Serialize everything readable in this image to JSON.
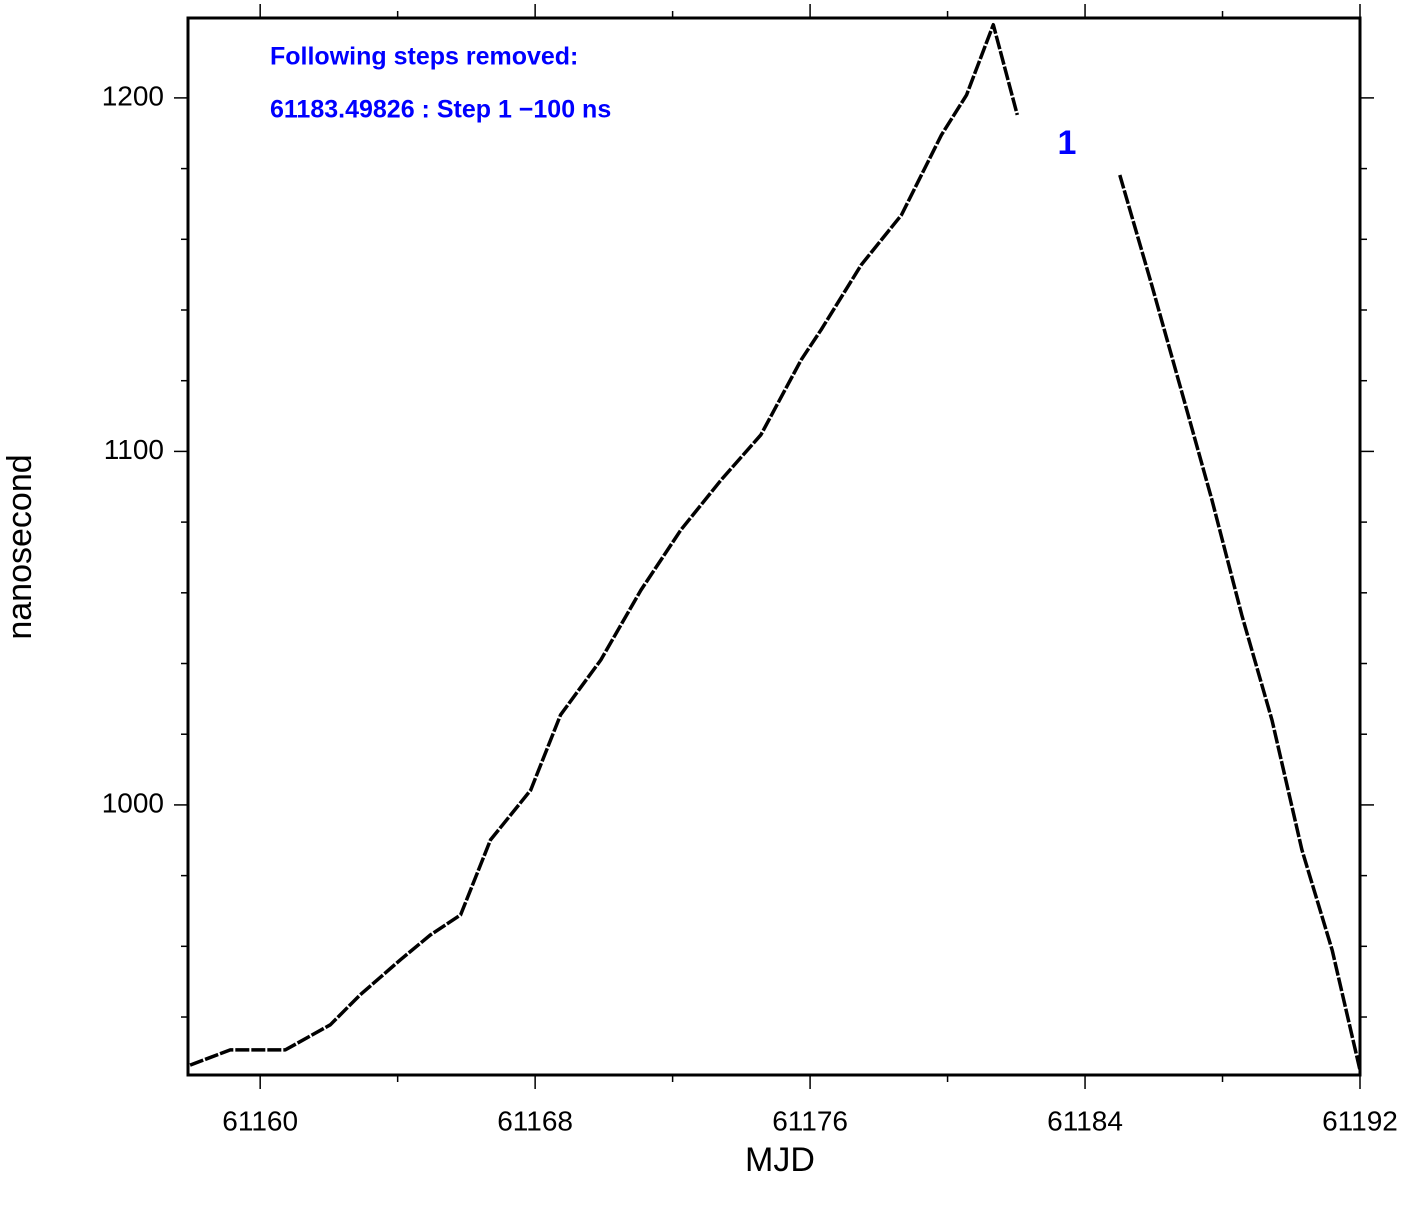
{
  "chart_data": {
    "type": "line",
    "xlabel": "MJD",
    "ylabel": "nanosecond",
    "annotations": [
      "Following steps removed:",
      "61183.49826 : Step 1 −100 ns",
      "1"
    ],
    "x": [
      61157.96,
      61159.13,
      61160,
      61160.73,
      61162.04,
      61162.91,
      61164.08,
      61164.95,
      61165.83,
      61166.7,
      61167.87,
      61168.74,
      61169.91,
      61171.08,
      61172.24,
      61173.41,
      61174.57,
      61175.74,
      61176.32,
      61177.49,
      61178.66,
      61179.82,
      61180.55,
      61181.33,
      61182.03,
      61183.5,
      61185.01,
      61185.94,
      61186.96,
      61187.69,
      61188.56,
      61189.44,
      61190.31,
      61191.19,
      61192
    ],
    "series": [
      {
        "color": "#000000",
        "values": [
          926.4,
          930.7,
          930.7,
          930.7,
          937.8,
          946.3,
          956.2,
          963.2,
          968.9,
          990.1,
          1004.2,
          1025.5,
          1041.0,
          1060.8,
          1077.8,
          1091.9,
          1104.7,
          1125.9,
          1134.4,
          1152.8,
          1166.9,
          1189.5,
          1200.8,
          1220.7,
          1195.2,
          null,
          1178.2,
          1147.1,
          1111.7,
          1086.3,
          1053.7,
          1024.0,
          987.3,
          958.9,
          925.0
        ]
      }
    ],
    "xlim": [
      61157.9,
      61192
    ],
    "ylim": [
      923.6,
      1222.6
    ],
    "xticks": [
      61160,
      61168,
      61176,
      61184,
      61192
    ],
    "yticks": [
      1000,
      1100,
      1200
    ],
    "x_minor_ticks": [
      61164,
      61172,
      61180,
      61188
    ],
    "y_minor_ticks": [
      940,
      960,
      980,
      1020,
      1040,
      1060,
      1080,
      1120,
      1140,
      1160,
      1180
    ],
    "annotation_color": "#0000ff"
  }
}
